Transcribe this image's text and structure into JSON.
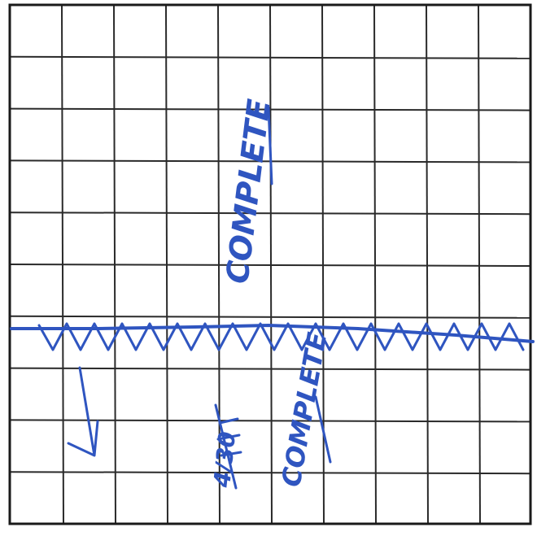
{
  "document": {
    "annotations": {
      "upper": "COMPLETE",
      "lower": "COMPLETE",
      "struck": "4/30"
    },
    "colors": {
      "paper": "#ffffff",
      "grid_line": "#2a2a2a",
      "ink": "#2f55c0"
    },
    "grid": {
      "columns": 10,
      "rows": 10
    }
  }
}
